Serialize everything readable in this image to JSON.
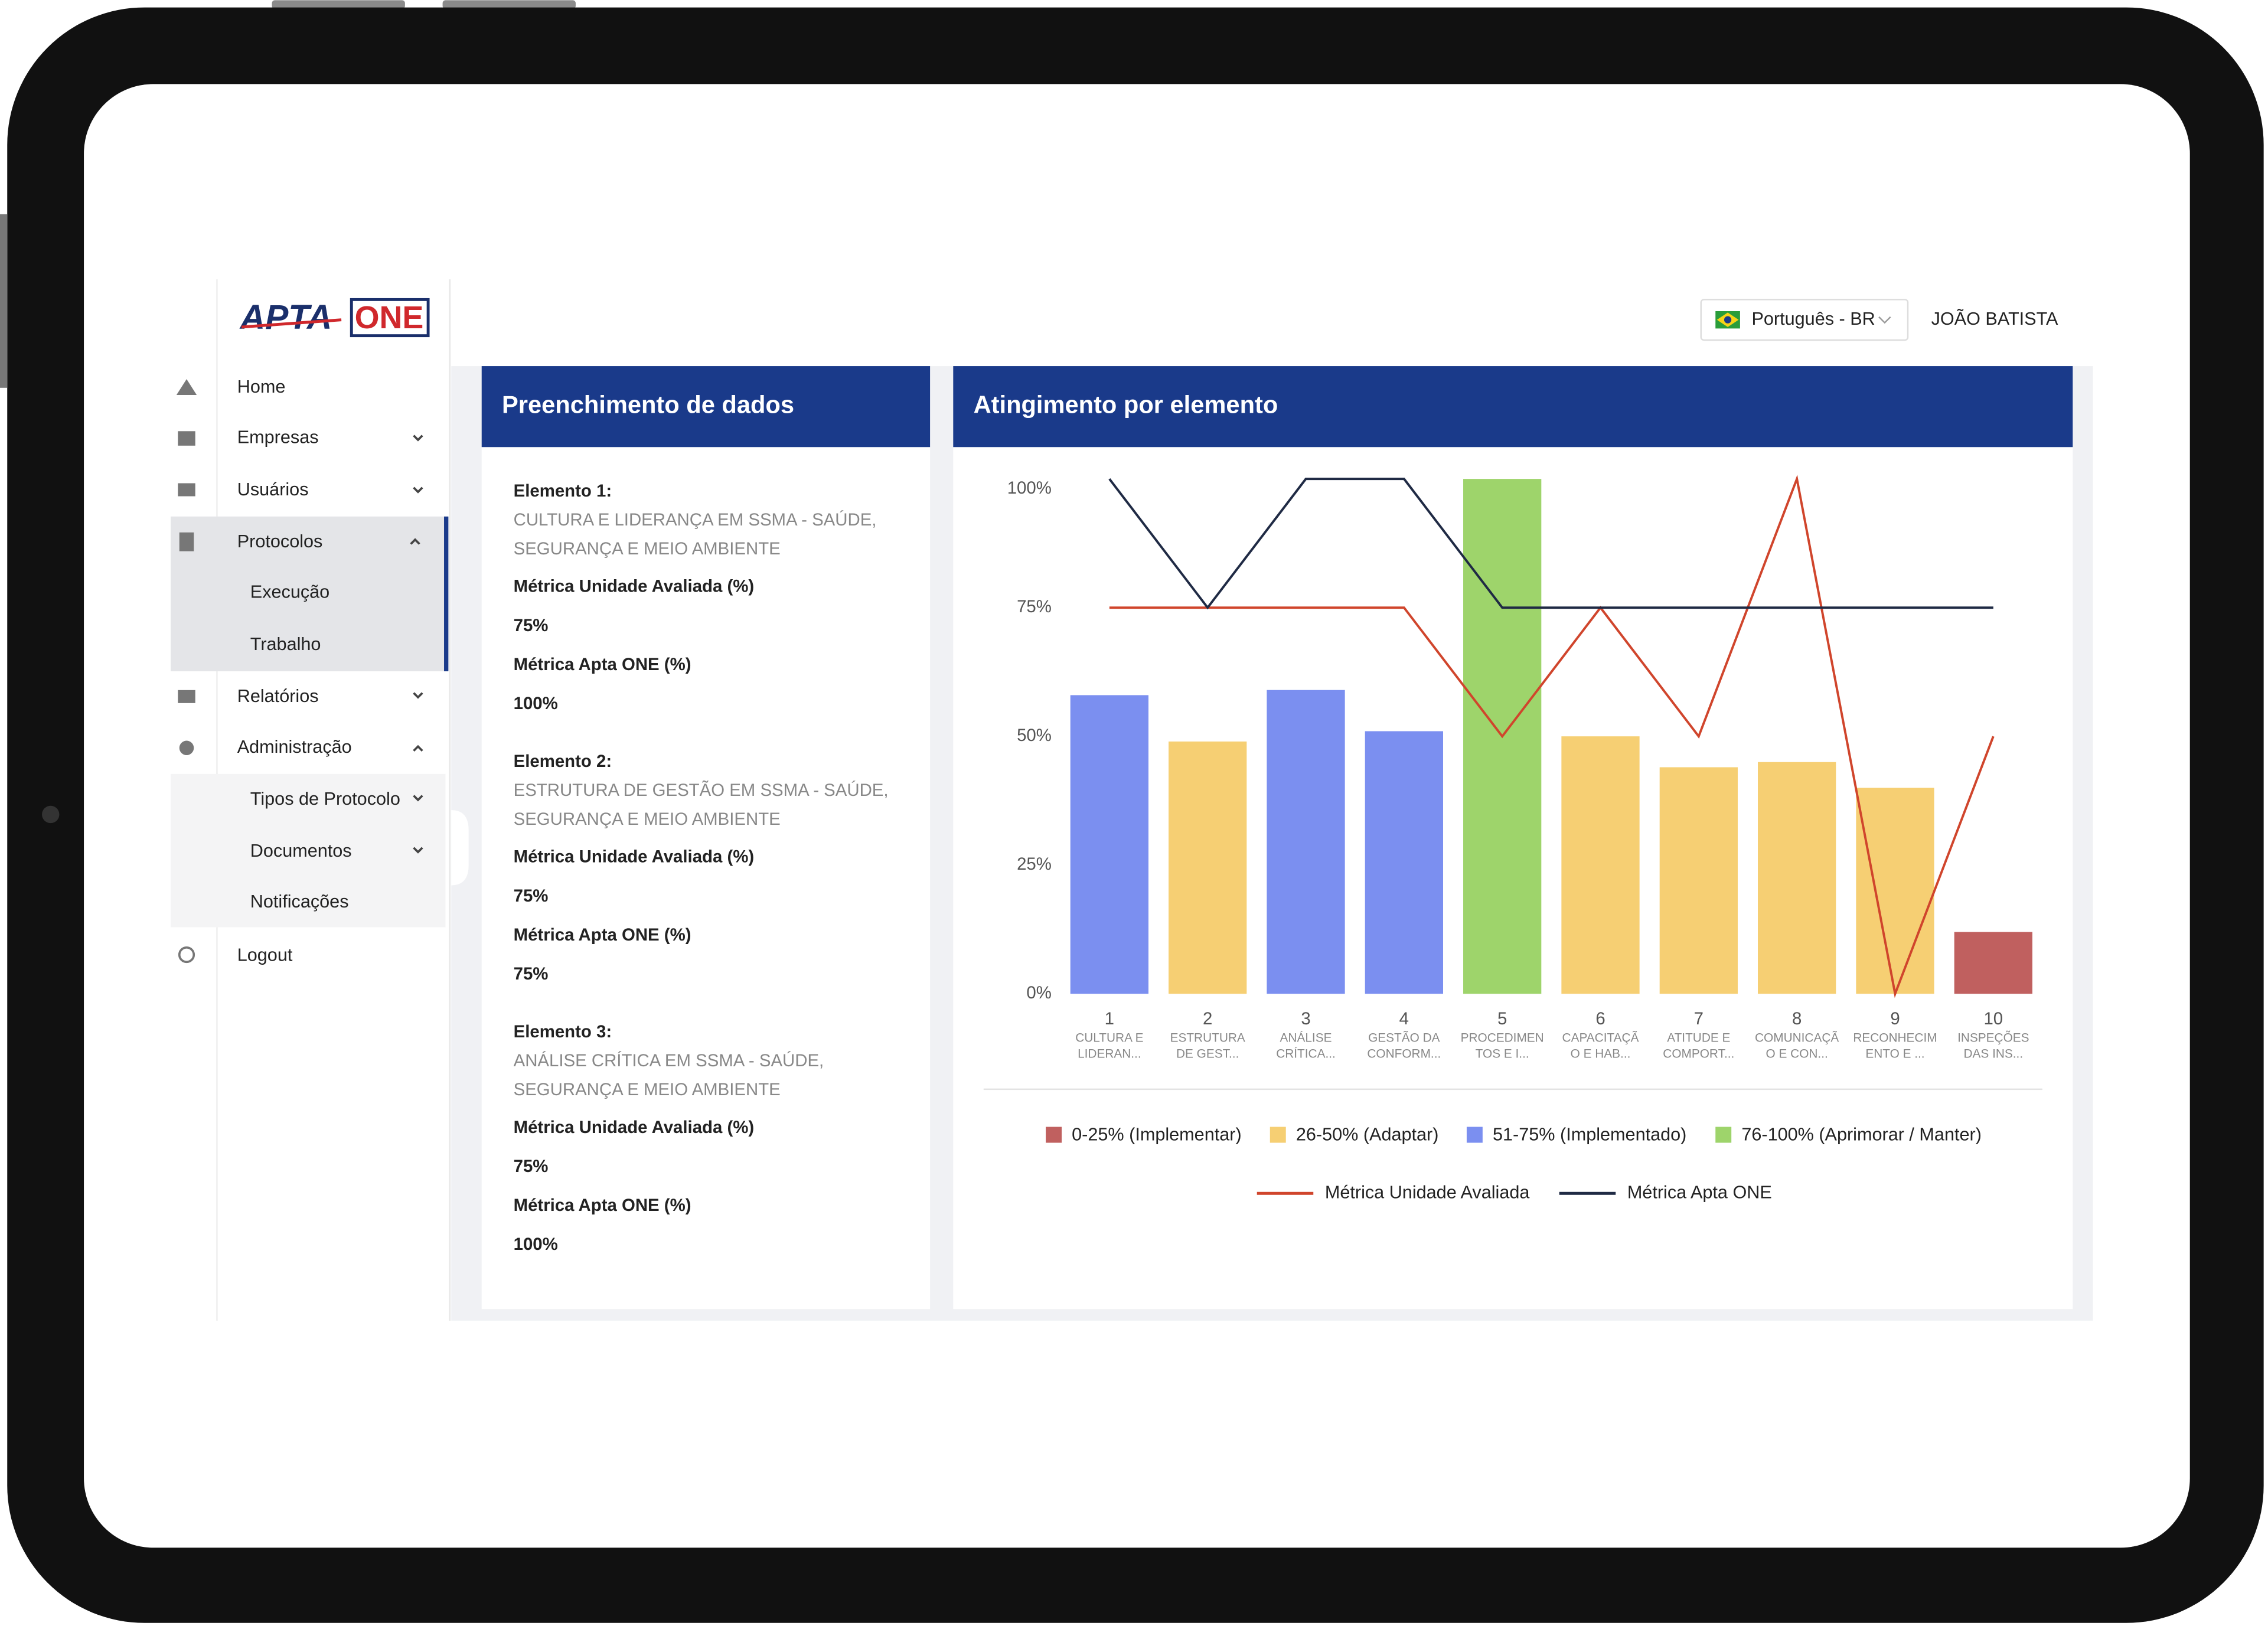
{
  "header": {
    "language": "Português - BR",
    "user": "JOÃO BATISTA"
  },
  "sidebar": {
    "logo": {
      "left": "APTA",
      "right": "ONE"
    },
    "menu": [
      "Home",
      "Empresas",
      "Usuários",
      "Protocolos",
      "Execução",
      "Trabalho",
      "Relatórios",
      "Administração",
      "Tipos de Protocolo",
      "Documentos",
      "Notificações",
      "Logout"
    ]
  },
  "data_panel": {
    "title": "Preenchimento de dados",
    "elements": [
      {
        "heading": "Elemento 1:",
        "name": [
          "CULTURA E LIDERANÇA EM SSMA - SAÚDE,",
          "SEGURANÇA E MEIO AMBIENTE"
        ],
        "metrics": [
          {
            "label": "Métrica Unidade Avaliada (%)",
            "value": "75%"
          },
          {
            "label": "Métrica Apta ONE (%)",
            "value": "100%"
          }
        ]
      },
      {
        "heading": "Elemento 2:",
        "name": [
          "ESTRUTURA DE GESTÃO EM SSMA - SAÚDE,",
          "SEGURANÇA E MEIO AMBIENTE"
        ],
        "metrics": [
          {
            "label": "Métrica Unidade Avaliada (%)",
            "value": "75%"
          },
          {
            "label": "Métrica Apta ONE (%)",
            "value": "75%"
          }
        ]
      },
      {
        "heading": "Elemento 3:",
        "name": [
          "ANÁLISE CRÍTICA EM SSMA - SAÚDE,",
          "SEGURANÇA E MEIO AMBIENTE"
        ],
        "metrics": [
          {
            "label": "Métrica Unidade Avaliada (%)",
            "value": "75%"
          },
          {
            "label": "Métrica Apta ONE (%)",
            "value": "100%"
          }
        ]
      }
    ]
  },
  "chart_panel": {
    "title": "Atingimento por elemento",
    "chart": {
      "type": "bar",
      "categories": [
        "1",
        "2",
        "3",
        "4",
        "5",
        "6",
        "7",
        "8",
        "9",
        "10"
      ],
      "category_descriptions": [
        [
          "CULTURA E",
          "LIDERAN..."
        ],
        [
          "ESTRUTURA",
          "DE GEST..."
        ],
        [
          "ANÁLISE",
          "CRÍTICA..."
        ],
        [
          "GESTÃO DA",
          "CONFORM..."
        ],
        [
          "PROCEDIMEN",
          "TOS E I..."
        ],
        [
          "CAPACITAÇÃ",
          "O E HAB..."
        ],
        [
          "ATITUDE E",
          "COMPORT..."
        ],
        [
          "COMUNICAÇÃ",
          "O E CON..."
        ],
        [
          "RECONHECIM",
          "ENTO E ..."
        ],
        [
          "INSPEÇÕES",
          "DAS INS..."
        ]
      ],
      "values": [
        58,
        49,
        59,
        51,
        100,
        50,
        44,
        45,
        40,
        12
      ],
      "colors": [
        "#7b8ff0",
        "#f6cf73",
        "#7b8ff0",
        "#7b8ff0",
        "#9ed46b",
        "#f6cf73",
        "#f6cf73",
        "#f6cf73",
        "#f6cf73",
        "#c0605f"
      ],
      "legend": [
        {
          "name": "0-25% (Implementar)",
          "color": "#c0605f"
        },
        {
          "name": "26-50% (Adaptar)",
          "color": "#f6cf73"
        },
        {
          "name": "51-75% (Implementado)",
          "color": "#7b8ff0"
        },
        {
          "name": "76-100% (Aprimorar / Manter)",
          "color": "#9ed46b"
        }
      ],
      "series": [
        {
          "name": "Métrica Unidade Avaliada",
          "color": "#d0452c",
          "values": [
            75,
            75,
            75,
            75,
            50,
            75,
            50,
            100,
            0,
            50
          ]
        },
        {
          "name": "Métrica Apta ONE",
          "color": "#1f2a44",
          "values": [
            100,
            75,
            100,
            100,
            75,
            75,
            75,
            75,
            75,
            75
          ]
        }
      ],
      "ylim": [
        0,
        100
      ],
      "yticks": [
        {
          "value": 0,
          "label": "0%"
        },
        {
          "value": 25,
          "label": "25%"
        },
        {
          "value": 50,
          "label": "50%"
        },
        {
          "value": 75,
          "label": "75%"
        },
        {
          "value": 100,
          "label": "100%"
        }
      ]
    }
  }
}
